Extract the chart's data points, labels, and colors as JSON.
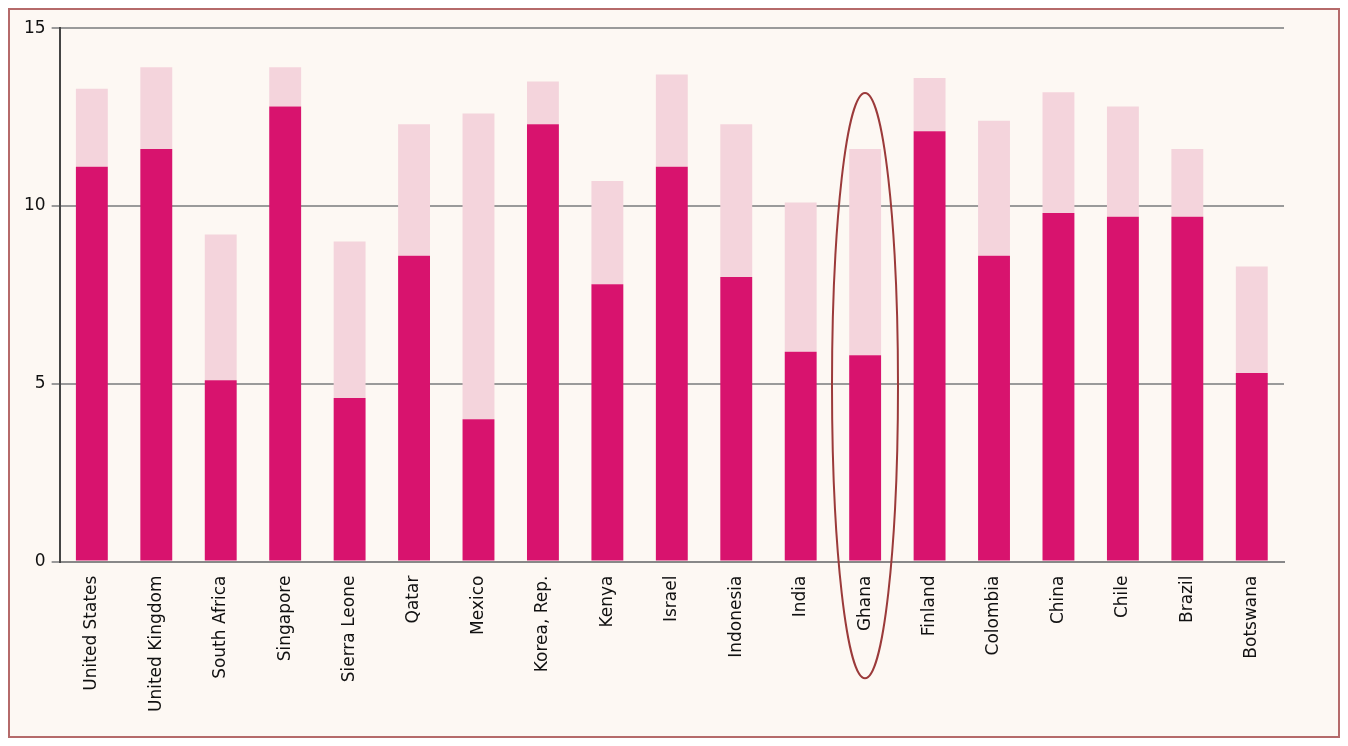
{
  "chart_data": {
    "type": "bar",
    "stacked": true,
    "categories": [
      "United States",
      "United Kingdom",
      "South Africa",
      "Singapore",
      "Sierra Leone",
      "Qatar",
      "Mexico",
      "Korea, Rep.",
      "Kenya",
      "Israel",
      "Indonesia",
      "India",
      "Ghana",
      "Finland",
      "Colombia",
      "China",
      "Chile",
      "Brazil",
      "Botswana"
    ],
    "series": [
      {
        "color": "#d8136e",
        "values": [
          11.1,
          11.6,
          5.1,
          12.8,
          4.6,
          8.6,
          4.0,
          12.3,
          7.8,
          11.1,
          8.0,
          5.9,
          5.8,
          12.1,
          8.6,
          9.8,
          9.7,
          9.7,
          5.3
        ]
      },
      {
        "color": "#f4d4dc",
        "values": [
          2.2,
          2.3,
          4.1,
          1.1,
          4.4,
          3.7,
          8.6,
          1.2,
          2.9,
          2.6,
          4.3,
          4.2,
          5.8,
          1.5,
          3.8,
          3.4,
          3.1,
          1.9,
          3.0
        ]
      }
    ],
    "ylim": [
      0,
      15
    ],
    "yticks": [
      0,
      5,
      10,
      15
    ],
    "grid": "y",
    "legend": false
  }
}
